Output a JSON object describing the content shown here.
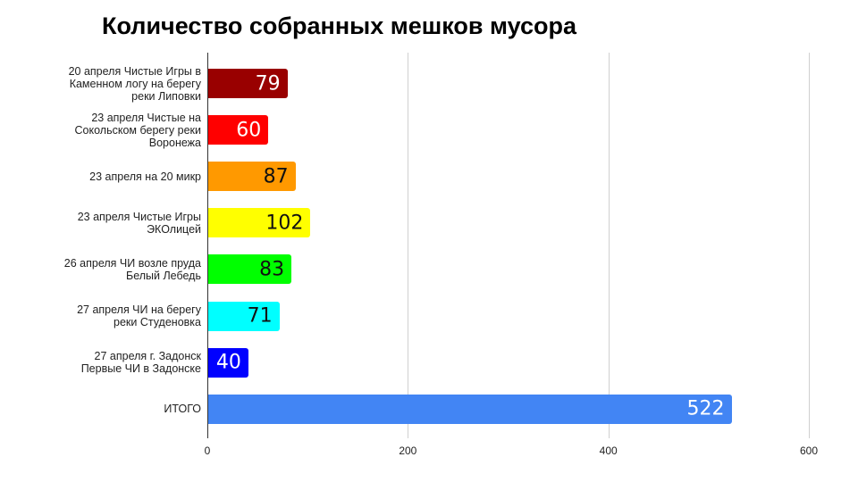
{
  "title": "Количество собранных мешков мусора",
  "chart_data": {
    "type": "bar",
    "orientation": "horizontal",
    "title": "Количество собранных мешков мусора",
    "xlabel": "",
    "ylabel": "",
    "xlim": [
      0,
      600
    ],
    "xticks": [
      0,
      200,
      400,
      600
    ],
    "grid": true,
    "legend": "none",
    "categories": [
      "20 апреля Чистые Игры в\nКаменном логу на берегу\nреки Липовки",
      "23 апреля Чистые на\nСокольском берегу реки\nВоронежа",
      "23 апреля на 20 микр",
      "23 апреля Чистые Игры\nЭКОлицей",
      "26 апреля ЧИ возле пруда\nБелый Лебедь",
      "27 апреля ЧИ на берегу\nреки Студеновка",
      "27 апреля г. Задонск\nПервые ЧИ в Задонске",
      "ИТОГО"
    ],
    "values": [
      79,
      60,
      87,
      102,
      83,
      71,
      40,
      522
    ],
    "colors": [
      "#990000",
      "#ff0000",
      "#ff9900",
      "#ffff00",
      "#00ff00",
      "#00ffff",
      "#0000ff",
      "#4285f4"
    ],
    "label_colors": [
      "#ffffff",
      "#ffffff",
      "#111111",
      "#111111",
      "#111111",
      "#111111",
      "#ffffff",
      "#ffffff"
    ]
  }
}
